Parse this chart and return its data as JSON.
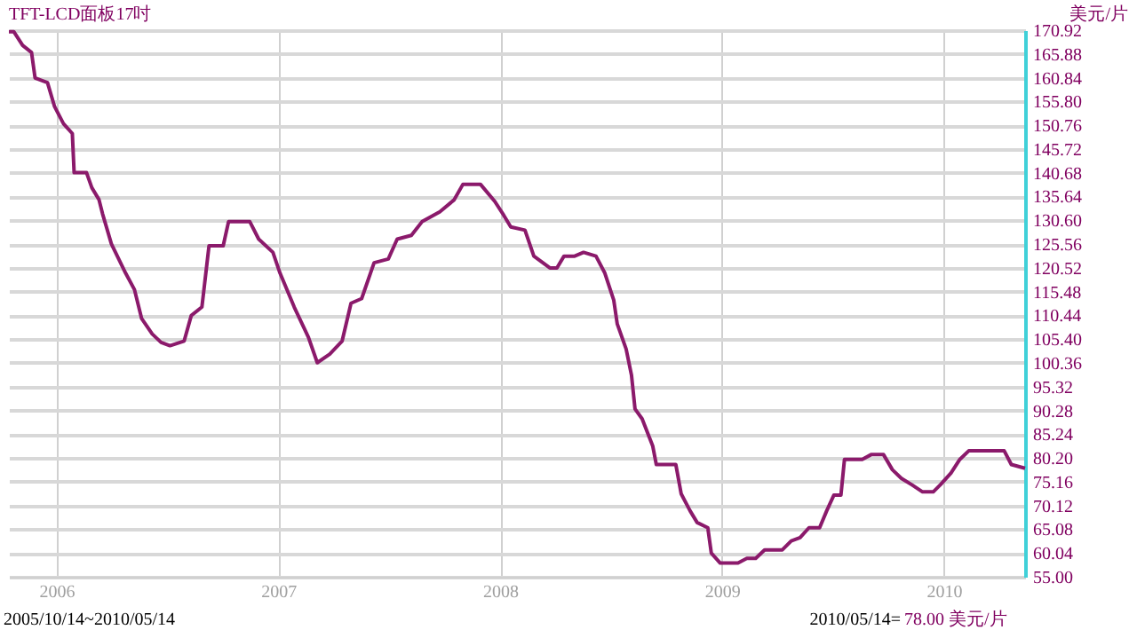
{
  "chart_data": {
    "type": "line",
    "title": "TFT-LCD面板17吋",
    "ylabel": "美元/片",
    "annotations": [
      "2005/10/14~2010/05/14",
      "2010/05/14=",
      "78.00 美元/片"
    ],
    "xlim": [
      2005.786,
      2010.366
    ],
    "xticks": [
      2006,
      2007,
      2008,
      2009,
      2010
    ],
    "ylim": [
      55,
      170.92
    ],
    "yticks": [
      {
        "value": 55,
        "label": "55.00"
      },
      60.04,
      65.08,
      70.12,
      75.16,
      {
        "value": 80.2,
        "label": "80.20"
      },
      85.24,
      90.28,
      95.32,
      100.36,
      {
        "value": 105.4,
        "label": "105.40"
      },
      110.44,
      115.48,
      120.52,
      125.56,
      {
        "value": 130.6,
        "label": "130.60"
      },
      135.64,
      140.68,
      145.72,
      150.76,
      {
        "value": 155.8,
        "label": "155.80"
      },
      160.84,
      165.88,
      170.92
    ],
    "grid": true,
    "marker": "none",
    "line_style": "solid",
    "x": [
      2005.786,
      2005.808,
      2005.848,
      2005.888,
      2005.904,
      2005.96,
      2005.992,
      2006.032,
      2006.072,
      2006.08,
      2006.136,
      2006.16,
      2006.192,
      2006.208,
      2006.248,
      2006.312,
      2006.352,
      2006.384,
      2006.432,
      2006.472,
      2006.512,
      2006.576,
      2006.608,
      2006.656,
      2006.688,
      2006.752,
      2006.776,
      2006.872,
      2006.912,
      2006.976,
      2007.008,
      2007.072,
      2007.136,
      2007.176,
      2007.232,
      2007.288,
      2007.328,
      2007.376,
      2007.432,
      2007.496,
      2007.536,
      2007.6,
      2007.648,
      2007.728,
      2007.792,
      2007.832,
      2007.912,
      2007.976,
      2008.016,
      2008.048,
      2008.112,
      2008.152,
      2008.224,
      2008.256,
      2008.288,
      2008.336,
      2008.376,
      2008.432,
      2008.472,
      2008.512,
      2008.528,
      2008.568,
      2008.592,
      2008.608,
      2008.64,
      2008.688,
      2008.704,
      2008.792,
      2008.816,
      2008.856,
      2008.888,
      2008.936,
      2008.952,
      2008.992,
      2009.072,
      2009.112,
      2009.152,
      2009.192,
      2009.272,
      2009.312,
      2009.352,
      2009.392,
      2009.44,
      2009.472,
      2009.504,
      2009.536,
      2009.552,
      2009.632,
      2009.672,
      2009.728,
      2009.768,
      2009.808,
      2009.856,
      2009.904,
      2009.952,
      2009.984,
      2010.032,
      2010.072,
      2010.112,
      2010.272,
      2010.304,
      2010.366
    ],
    "series": [
      {
        "color": "#8b1a6b",
        "values": [
          170.6,
          170.6,
          167.7,
          166.2,
          160.8,
          159.8,
          154.7,
          151.1,
          149,
          140.7,
          140.7,
          137.5,
          135,
          132,
          125.6,
          119.4,
          115.9,
          109.8,
          106.5,
          104.7,
          104,
          105,
          110.4,
          112.2,
          125.2,
          125.2,
          130.3,
          130.3,
          126.6,
          123.8,
          119.4,
          112.2,
          105.8,
          100.4,
          102.2,
          105,
          113,
          114,
          121.6,
          122.4,
          126.6,
          127.4,
          130.3,
          132.4,
          134.9,
          138.2,
          138.2,
          134.6,
          131.7,
          129.2,
          128.5,
          123,
          120.5,
          120.5,
          123,
          123,
          123.8,
          123,
          119.4,
          113.7,
          108.6,
          103.3,
          97.8,
          90.6,
          88.5,
          82.7,
          78.8,
          78.8,
          72.6,
          69,
          66.5,
          65.4,
          60,
          57.9,
          57.9,
          58.9,
          58.9,
          60.7,
          60.7,
          62.6,
          63.3,
          65.4,
          65.4,
          69,
          72.3,
          72.3,
          79.9,
          79.9,
          80.9,
          80.9,
          77.7,
          75.9,
          74.5,
          73,
          73,
          74.5,
          77,
          79.9,
          81.7,
          81.7,
          78.8,
          78
        ]
      }
    ]
  }
}
